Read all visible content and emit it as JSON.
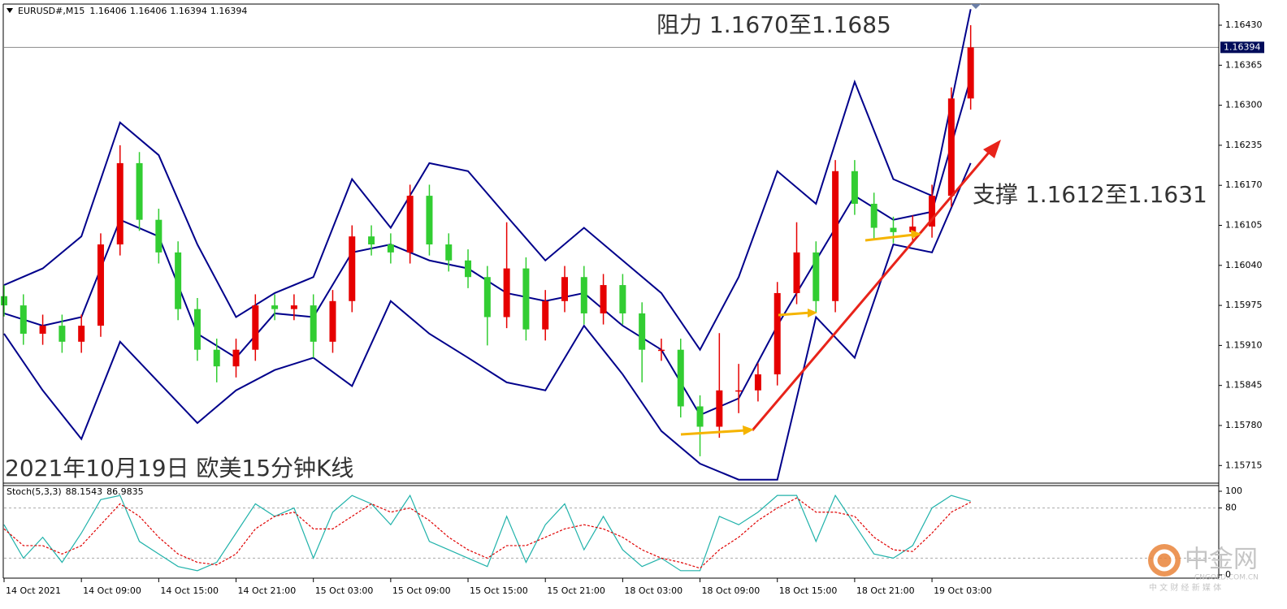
{
  "chart_data": [
    {
      "type": "candlestick",
      "symbol": "EURUSD#,M15",
      "quote": [
        1.16406,
        1.16406,
        1.16394,
        1.16394
      ],
      "last_price": 1.16394,
      "up_color": "#e60000",
      "down_color": "#32cd32",
      "x": [
        0,
        6,
        12,
        18,
        24,
        30,
        36,
        42,
        48,
        54,
        60,
        66,
        72,
        78,
        84,
        90,
        96,
        102,
        108,
        114,
        120,
        126,
        132,
        138,
        144,
        150,
        156,
        162,
        168,
        174,
        180,
        186,
        192,
        198,
        204,
        210,
        216,
        222,
        228,
        234,
        240,
        246,
        252,
        258,
        264,
        270,
        276,
        282,
        288,
        294,
        300
      ],
      "ohlc": [
        [
          1.1599,
          1.16008,
          1.15957,
          1.15975
        ],
        [
          1.15975,
          1.15993,
          1.15911,
          1.15929
        ],
        [
          1.15929,
          1.1596,
          1.15911,
          1.15942
        ],
        [
          1.15942,
          1.1596,
          1.15898,
          1.15916
        ],
        [
          1.15916,
          1.1596,
          1.15898,
          1.15942
        ],
        [
          1.15942,
          1.16092,
          1.15924,
          1.16074
        ],
        [
          1.16074,
          1.16235,
          1.16056,
          1.16206
        ],
        [
          1.16206,
          1.16224,
          1.16096,
          1.16114
        ],
        [
          1.16114,
          1.16132,
          1.16043,
          1.16061
        ],
        [
          1.16061,
          1.16079,
          1.15951,
          1.15969
        ],
        [
          1.15969,
          1.15987,
          1.15885,
          1.15903
        ],
        [
          1.15903,
          1.15921,
          1.1585,
          1.15876
        ],
        [
          1.15876,
          1.15921,
          1.15858,
          1.15903
        ],
        [
          1.15903,
          1.15993,
          1.15885,
          1.15975
        ],
        [
          1.15975,
          1.15993,
          1.15951,
          1.15969
        ],
        [
          1.15969,
          1.15993,
          1.15951,
          1.15975
        ],
        [
          1.15975,
          1.15993,
          1.1589,
          1.15916
        ],
        [
          1.15916,
          1.16,
          1.15898,
          1.15982
        ],
        [
          1.15982,
          1.16105,
          1.15964,
          1.16087
        ],
        [
          1.16087,
          1.16105,
          1.16056,
          1.16074
        ],
        [
          1.16074,
          1.16092,
          1.16043,
          1.16061
        ],
        [
          1.16061,
          1.16171,
          1.16043,
          1.16153
        ],
        [
          1.16153,
          1.16171,
          1.16056,
          1.16074
        ],
        [
          1.16074,
          1.16092,
          1.1603,
          1.16048
        ],
        [
          1.16048,
          1.16066,
          1.16003,
          1.16021
        ],
        [
          1.16021,
          1.16039,
          1.1591,
          1.15956
        ],
        [
          1.15956,
          1.1611,
          1.15938,
          1.16035
        ],
        [
          1.16035,
          1.16053,
          1.15918,
          1.15936
        ],
        [
          1.15936,
          1.16,
          1.15918,
          1.15982
        ],
        [
          1.15982,
          1.16039,
          1.15964,
          1.16021
        ],
        [
          1.16021,
          1.16039,
          1.15944,
          1.15962
        ],
        [
          1.15962,
          1.16026,
          1.15944,
          1.16008
        ],
        [
          1.16008,
          1.16026,
          1.15944,
          1.15962
        ],
        [
          1.15962,
          1.1598,
          1.1585,
          1.15903
        ],
        [
          1.15903,
          1.15921,
          1.15885,
          1.15903
        ],
        [
          1.15903,
          1.15921,
          1.15793,
          1.15811
        ],
        [
          1.15811,
          1.15829,
          1.1573,
          1.15778
        ],
        [
          1.15778,
          1.1593,
          1.1576,
          1.15837
        ],
        [
          1.15837,
          1.1588,
          1.158,
          1.15837
        ],
        [
          1.15837,
          1.15881,
          1.15819,
          1.15863
        ],
        [
          1.15863,
          1.16013,
          1.15845,
          1.15995
        ],
        [
          1.15995,
          1.1611,
          1.15977,
          1.16061
        ],
        [
          1.16061,
          1.16079,
          1.15964,
          1.15982
        ],
        [
          1.15982,
          1.16211,
          1.15964,
          1.16193
        ],
        [
          1.16193,
          1.16211,
          1.16122,
          1.1614
        ],
        [
          1.1614,
          1.16158,
          1.16083,
          1.16101
        ],
        [
          1.16101,
          1.16119,
          1.16076,
          1.16094
        ],
        [
          1.16094,
          1.16121,
          1.16076,
          1.16103
        ],
        [
          1.16103,
          1.16171,
          1.16085,
          1.16153
        ],
        [
          1.16153,
          1.16329,
          1.16135,
          1.16311
        ],
        [
          1.16311,
          1.1643,
          1.16293,
          1.16394
        ]
      ],
      "bands": {
        "color": "#00008b",
        "x": [
          0,
          12,
          24,
          36,
          48,
          60,
          72,
          84,
          96,
          108,
          120,
          132,
          144,
          156,
          168,
          180,
          192,
          204,
          216,
          228,
          240,
          252,
          264,
          276,
          288,
          300
        ],
        "upper": [
          1.16008,
          1.16035,
          1.16087,
          1.16272,
          1.16219,
          1.16074,
          1.15956,
          1.15995,
          1.16021,
          1.1618,
          1.16101,
          1.16206,
          1.16193,
          1.1612,
          1.16048,
          1.16101,
          1.16048,
          1.15995,
          1.15903,
          1.16021,
          1.16193,
          1.1614,
          1.16338,
          1.1618,
          1.16153,
          1.16456
        ],
        "middle": [
          1.15962,
          1.15942,
          1.15956,
          1.16114,
          1.16087,
          1.15929,
          1.1589,
          1.15962,
          1.15956,
          1.16061,
          1.16074,
          1.16048,
          1.16035,
          1.15995,
          1.15982,
          1.15995,
          1.15942,
          1.15903,
          1.15797,
          1.15824,
          1.15942,
          1.16048,
          1.16153,
          1.16114,
          1.16127,
          1.16344
        ],
        "lower": [
          1.15929,
          1.15837,
          1.15758,
          1.15916,
          1.1585,
          1.15784,
          1.15837,
          1.1587,
          1.1589,
          1.15844,
          1.15982,
          1.15929,
          1.1589,
          1.1585,
          1.15837,
          1.15942,
          1.15863,
          1.15771,
          1.15718,
          1.15692,
          1.15692,
          1.15956,
          1.1589,
          1.16074,
          1.16061,
          1.16206
        ]
      },
      "annotations": [
        "阻力 1.1670至1.1685",
        "支撑 1.1612至1.1631",
        "2021年10月19日 欧美15分钟K线"
      ],
      "xlim": [
        0,
        377
      ],
      "xticks": [
        {
          "value": 0,
          "label": "14 Oct 2021"
        },
        {
          "value": 24,
          "label": "14 Oct 09:00"
        },
        {
          "value": 48,
          "label": "14 Oct 15:00"
        },
        {
          "value": 72,
          "label": "14 Oct 21:00"
        },
        {
          "value": 96,
          "label": "15 Oct 03:00"
        },
        {
          "value": 120,
          "label": "15 Oct 09:00"
        },
        {
          "value": 144,
          "label": "15 Oct 15:00"
        },
        {
          "value": 168,
          "label": "15 Oct 21:00"
        },
        {
          "value": 192,
          "label": "18 Oct 03:00"
        },
        {
          "value": 216,
          "label": "18 Oct 09:00"
        },
        {
          "value": 240,
          "label": "18 Oct 15:00"
        },
        {
          "value": 264,
          "label": "18 Oct 21:00"
        },
        {
          "value": 288,
          "label": "19 Oct 03:00"
        }
      ],
      "ylim": [
        1.15689,
        1.16463
      ],
      "yticks": [
        {
          "value": 1.1643,
          "label": "1.16430"
        },
        {
          "value": 1.16365,
          "label": "1.16365"
        },
        {
          "value": 1.163,
          "label": "1.16300"
        },
        {
          "value": 1.16235,
          "label": "1.16235"
        },
        {
          "value": 1.1617,
          "label": "1.16170"
        },
        {
          "value": 1.16105,
          "label": "1.16105"
        },
        {
          "value": 1.1604,
          "label": "1.16040"
        },
        {
          "value": 1.15975,
          "label": "1.15975"
        },
        {
          "value": 1.1591,
          "label": "1.15910"
        },
        {
          "value": 1.15845,
          "label": "1.15845"
        },
        {
          "value": 1.1578,
          "label": "1.15780"
        },
        {
          "value": 1.15715,
          "label": "1.15715"
        }
      ]
    },
    {
      "type": "line",
      "indicator": "Stoch(5,3,3)",
      "x": [
        0,
        6,
        12,
        18,
        24,
        30,
        36,
        42,
        48,
        54,
        60,
        66,
        72,
        78,
        84,
        90,
        96,
        102,
        108,
        114,
        120,
        126,
        132,
        138,
        144,
        150,
        156,
        162,
        168,
        174,
        180,
        186,
        192,
        198,
        204,
        210,
        216,
        222,
        228,
        234,
        240,
        246,
        252,
        258,
        264,
        270,
        276,
        282,
        288,
        294,
        300
      ],
      "series": [
        {
          "color": "#20b2aa",
          "values": [
            60,
            20,
            45,
            15,
            50,
            90,
            95,
            40,
            25,
            10,
            5,
            15,
            50,
            85,
            70,
            80,
            20,
            75,
            95,
            85,
            60,
            95,
            40,
            30,
            20,
            10,
            70,
            15,
            60,
            85,
            30,
            70,
            30,
            10,
            20,
            5,
            5,
            70,
            60,
            75,
            95,
            95,
            40,
            95,
            60,
            25,
            20,
            35,
            80,
            95,
            88.1543
          ]
        },
        {
          "color": "#e00000",
          "dashed": true,
          "values": [
            55,
            35,
            35,
            25,
            35,
            60,
            85,
            70,
            45,
            25,
            15,
            12,
            25,
            55,
            70,
            75,
            55,
            55,
            70,
            85,
            75,
            80,
            65,
            45,
            30,
            20,
            35,
            35,
            45,
            55,
            60,
            55,
            45,
            30,
            20,
            15,
            8,
            30,
            45,
            65,
            80,
            92,
            75,
            75,
            70,
            45,
            30,
            28,
            50,
            75,
            86.9835
          ]
        }
      ],
      "levels": [
        80,
        20
      ],
      "xlim": [
        0,
        377
      ],
      "ylim": [
        -3.9,
        106.8
      ],
      "yticks": [
        100,
        80,
        0
      ]
    }
  ],
  "watermark": {
    "name": "中金网",
    "site": "CNGOLD.COM.CN",
    "slogan": "中 文 财 经 新 媒 体"
  }
}
